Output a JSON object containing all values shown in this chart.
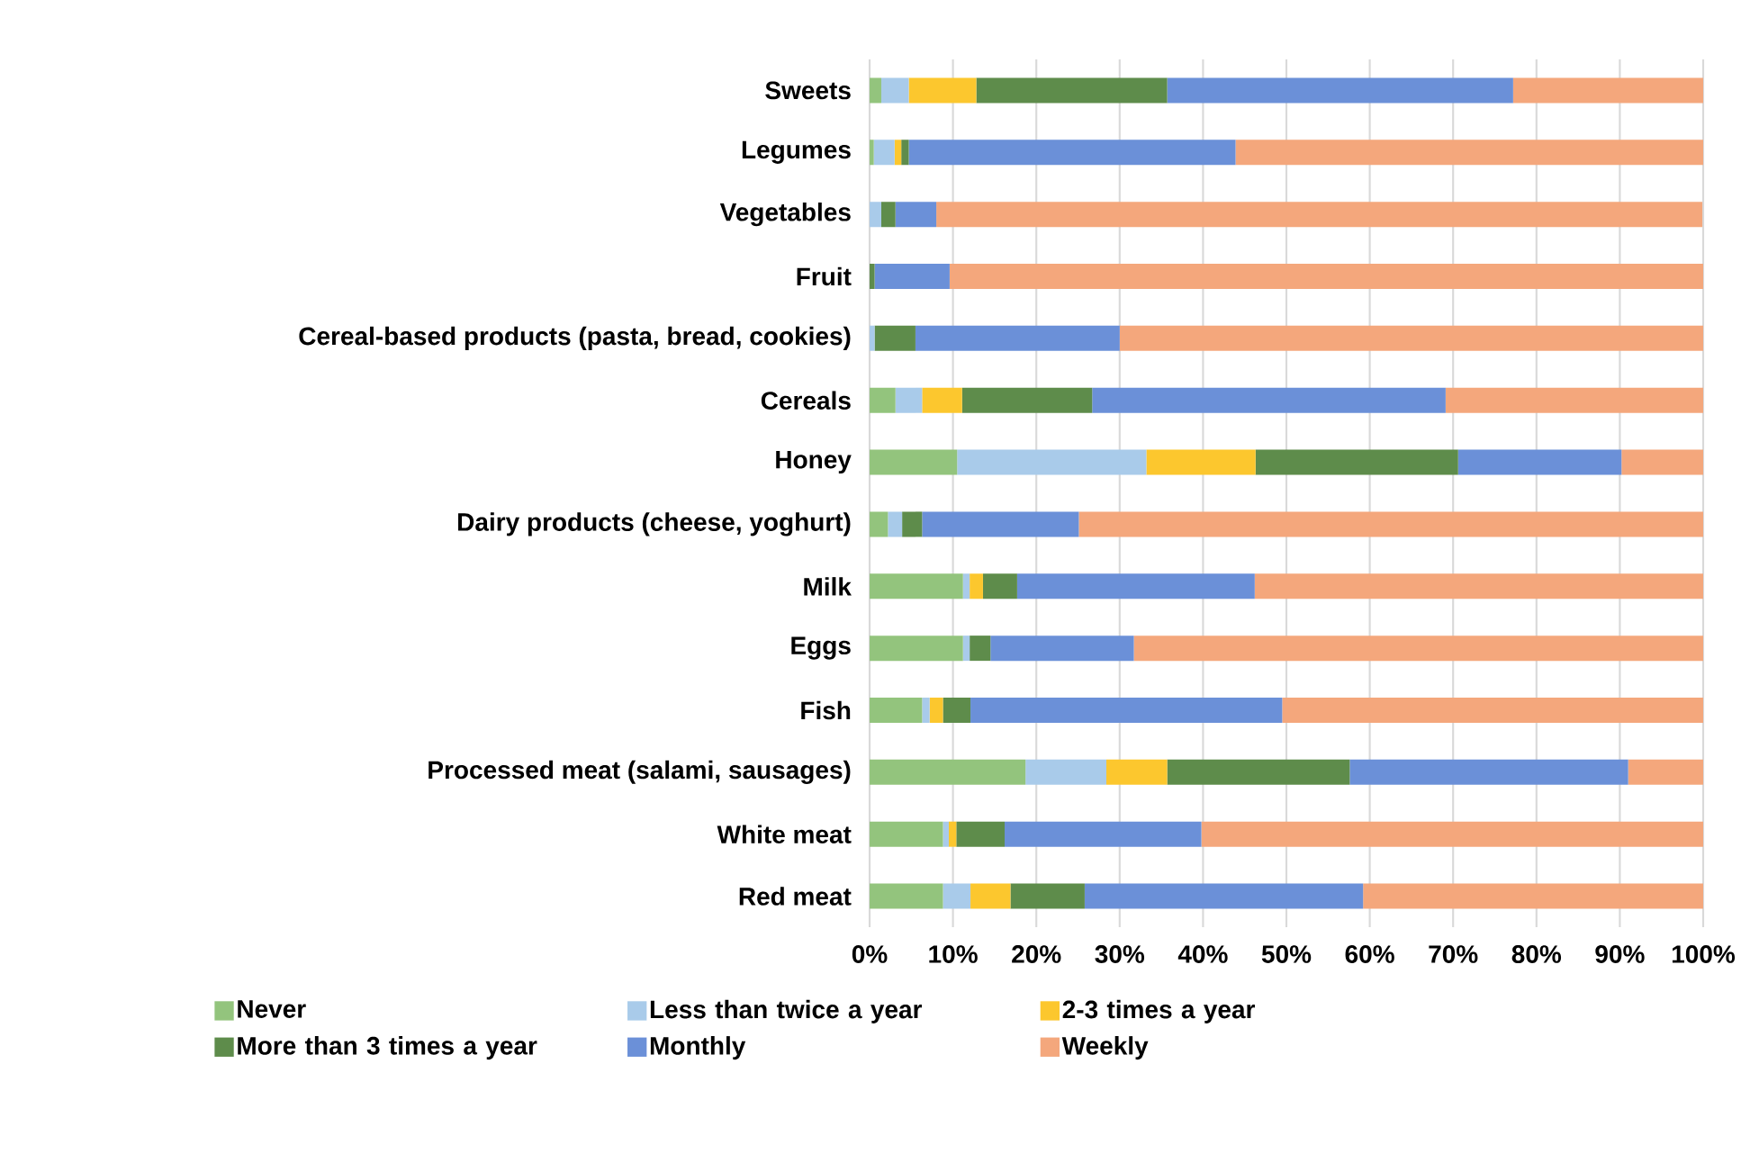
{
  "chart_data": {
    "type": "bar",
    "orientation": "horizontal",
    "stacked": true,
    "grid": "x",
    "legend": "bottom",
    "categories": [
      "Sweets",
      "Legumes",
      "Vegetables",
      "Fruit",
      "Cereal-based products (pasta, bread, cookies)",
      "Cereals",
      "Honey",
      "Dairy products (cheese, yoghurt)",
      "Milk",
      "Eggs",
      "Fish",
      "Processed meat (salami, sausages)",
      "White meat",
      "Red meat"
    ],
    "xlim": [
      0,
      100
    ],
    "xticks": [
      {
        "value": 0,
        "label": "0%"
      },
      {
        "value": 10,
        "label": "10%"
      },
      {
        "value": 20,
        "label": "20%"
      },
      {
        "value": 30,
        "label": "30%"
      },
      {
        "value": 40,
        "label": "40%"
      },
      {
        "value": 50,
        "label": "50%"
      },
      {
        "value": 60,
        "label": "60%"
      },
      {
        "value": 70,
        "label": "70%"
      },
      {
        "value": 80,
        "label": "80%"
      },
      {
        "value": 90,
        "label": "90%"
      },
      {
        "value": 100,
        "label": "100%"
      }
    ],
    "series": [
      {
        "name": "Never",
        "color": "#93c47d",
        "values": [
          1.4,
          0.5,
          0,
          0,
          0,
          3.1,
          10.5,
          2.2,
          11.2,
          11.2,
          6.3,
          18.7,
          8.8,
          8.8
        ]
      },
      {
        "name": "Less than twice a year",
        "color": "#a9cbea",
        "values": [
          3.3,
          2.5,
          1.4,
          0,
          0.6,
          3.2,
          22.7,
          1.7,
          0.8,
          0.8,
          0.9,
          9.7,
          0.7,
          3.3
        ]
      },
      {
        "name": "2-3 times a year",
        "color": "#fcc72e",
        "values": [
          8.1,
          0.8,
          0,
          0,
          0,
          4.8,
          13.1,
          0,
          1.6,
          0,
          1.6,
          7.3,
          0.9,
          4.8
        ]
      },
      {
        "name": "More than 3 times a year",
        "color": "#5e8c4b",
        "values": [
          22.9,
          0.9,
          1.7,
          0.6,
          4.9,
          15.6,
          24.3,
          2.4,
          4.1,
          2.5,
          3.3,
          21.9,
          5.8,
          8.9
        ]
      },
      {
        "name": "Monthly",
        "color": "#6b90d8",
        "values": [
          41.5,
          39.2,
          4.9,
          9.0,
          24.5,
          42.4,
          19.6,
          18.8,
          28.5,
          17.2,
          37.4,
          33.4,
          23.6,
          33.4
        ]
      },
      {
        "name": "Weekly",
        "color": "#f4a77c",
        "values": [
          22.8,
          56.1,
          91.9,
          90.4,
          70.0,
          30.9,
          9.8,
          74.9,
          53.8,
          68.3,
          50.5,
          9.0,
          60.2,
          40.8
        ]
      }
    ]
  }
}
